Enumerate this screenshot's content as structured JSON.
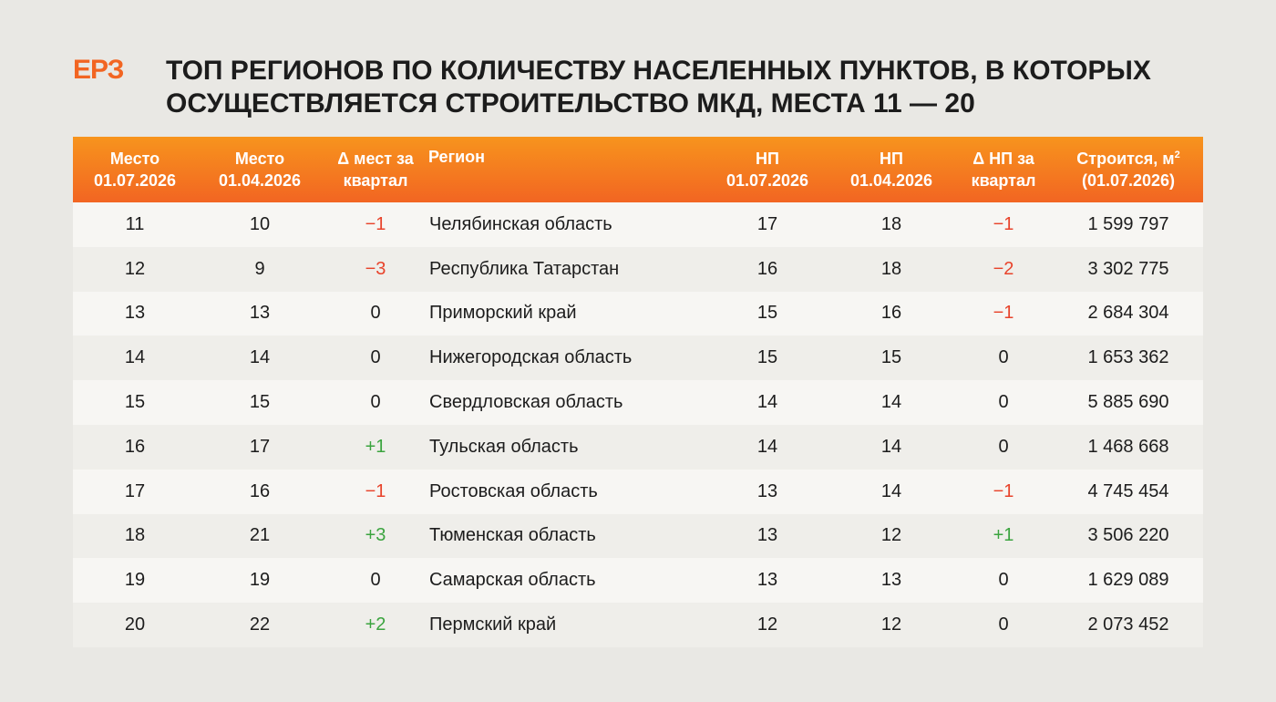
{
  "logo": "ЕРЗ",
  "title": {
    "line1": "ТОП РЕГИОНОВ ПО КОЛИЧЕСТВУ НАСЕЛЕННЫХ ПУНКТОВ, В КОТОРЫХ",
    "line2": "ОСУЩЕСТВЛЯЕТСЯ СТРОИТЕЛЬСТВО МКД, МЕСТА 11 — 20"
  },
  "headers": {
    "place_now": [
      "Место",
      "01.07.2026"
    ],
    "place_prev": [
      "Место",
      "01.04.2026"
    ],
    "place_delta": [
      "Δ мест за",
      "квартал"
    ],
    "region": "Регион",
    "np_now": [
      "НП",
      "01.07.2026"
    ],
    "np_prev": [
      "НП",
      "01.04.2026"
    ],
    "np_delta": [
      "Δ НП за",
      "квартал"
    ],
    "area": [
      "Строится, м",
      "2",
      "(01.07.2026)"
    ]
  },
  "colors": {
    "accent": "#f26522",
    "header_top": "#f7941d",
    "negative": "#e8432b",
    "positive": "#3ba43f"
  },
  "rows": [
    {
      "place_now": "11",
      "place_prev": "10",
      "place_delta": "−1",
      "region": "Челябинская область",
      "np_now": "17",
      "np_prev": "18",
      "np_delta": "−1",
      "area": "1 599 797"
    },
    {
      "place_now": "12",
      "place_prev": "9",
      "place_delta": "−3",
      "region": "Республика Татарстан",
      "np_now": "16",
      "np_prev": "18",
      "np_delta": "−2",
      "area": "3 302 775"
    },
    {
      "place_now": "13",
      "place_prev": "13",
      "place_delta": "0",
      "region": "Приморский край",
      "np_now": "15",
      "np_prev": "16",
      "np_delta": "−1",
      "area": "2 684 304"
    },
    {
      "place_now": "14",
      "place_prev": "14",
      "place_delta": "0",
      "region": "Нижегородская область",
      "np_now": "15",
      "np_prev": "15",
      "np_delta": "0",
      "area": "1 653 362"
    },
    {
      "place_now": "15",
      "place_prev": "15",
      "place_delta": "0",
      "region": "Свердловская область",
      "np_now": "14",
      "np_prev": "14",
      "np_delta": "0",
      "area": "5 885 690"
    },
    {
      "place_now": "16",
      "place_prev": "17",
      "place_delta": "+1",
      "region": "Тульская область",
      "np_now": "14",
      "np_prev": "14",
      "np_delta": "0",
      "area": "1 468 668"
    },
    {
      "place_now": "17",
      "place_prev": "16",
      "place_delta": "−1",
      "region": "Ростовская область",
      "np_now": "13",
      "np_prev": "14",
      "np_delta": "−1",
      "area": "4 745 454"
    },
    {
      "place_now": "18",
      "place_prev": "21",
      "place_delta": "+3",
      "region": "Тюменская область",
      "np_now": "13",
      "np_prev": "12",
      "np_delta": "+1",
      "area": "3 506 220"
    },
    {
      "place_now": "19",
      "place_prev": "19",
      "place_delta": "0",
      "region": "Самарская область",
      "np_now": "13",
      "np_prev": "13",
      "np_delta": "0",
      "area": "1 629 089"
    },
    {
      "place_now": "20",
      "place_prev": "22",
      "place_delta": "+2",
      "region": "Пермский край",
      "np_now": "12",
      "np_prev": "12",
      "np_delta": "0",
      "area": "2 073 452"
    }
  ]
}
